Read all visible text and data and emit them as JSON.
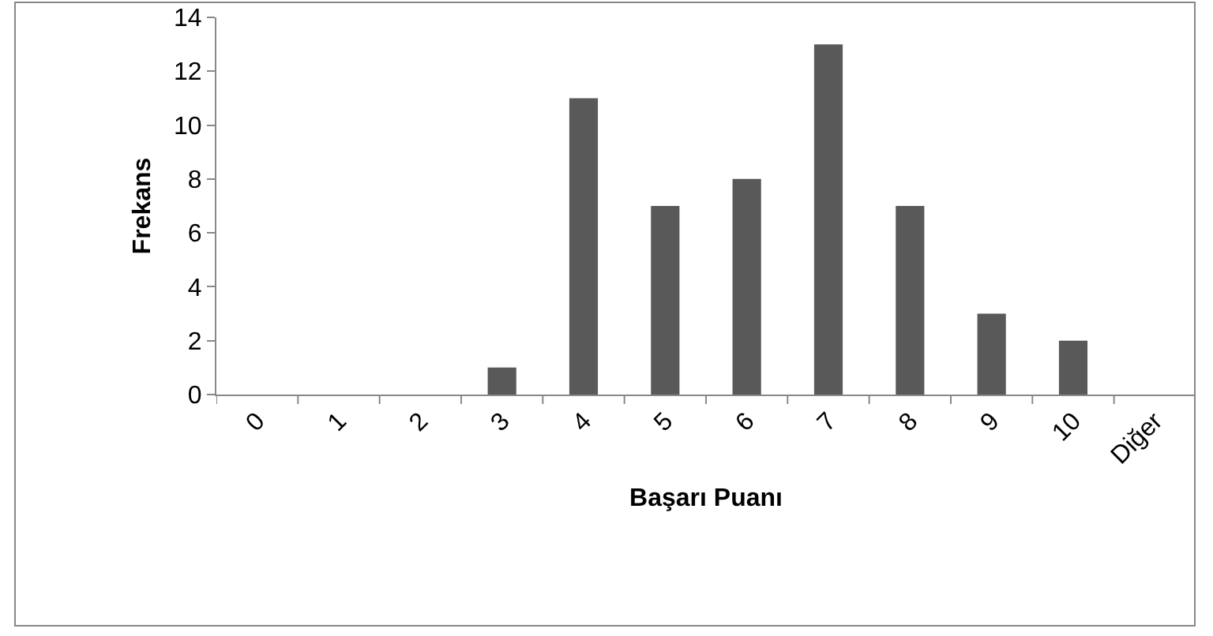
{
  "chart_data": {
    "type": "bar",
    "xlabel": "Başarı Puanı",
    "ylabel": "Frekans",
    "categories": [
      "0",
      "1",
      "2",
      "3",
      "4",
      "5",
      "6",
      "7",
      "8",
      "9",
      "10",
      "Diğer"
    ],
    "values": [
      0,
      0,
      0,
      1,
      11,
      7,
      8,
      13,
      7,
      3,
      2,
      0
    ],
    "color": "#595959",
    "ylim": [
      0,
      14
    ],
    "yticks": [
      0,
      2,
      4,
      6,
      8,
      10,
      12,
      14
    ],
    "grid": false
  }
}
